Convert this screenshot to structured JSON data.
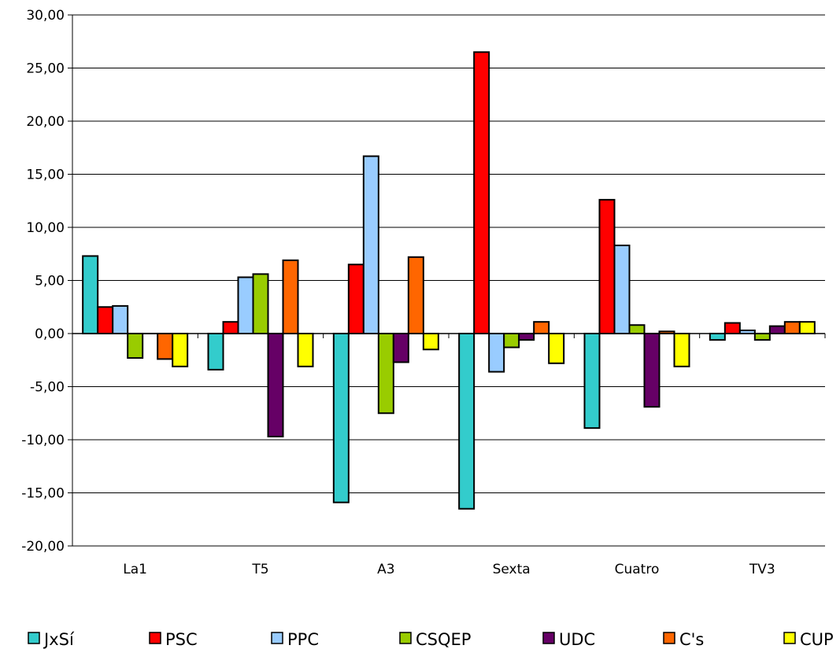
{
  "chart_data": {
    "type": "bar",
    "title": "",
    "xlabel": "",
    "ylabel": "",
    "categories": [
      "La1",
      "T5",
      "A3",
      "Sexta",
      "Cuatro",
      "TV3"
    ],
    "ylim": [
      -20,
      30
    ],
    "yticks": [
      30,
      25,
      20,
      15,
      10,
      5,
      0,
      -5,
      -10,
      -15,
      -20
    ],
    "ytick_labels": [
      "30,00",
      "25,00",
      "20,00",
      "15,00",
      "10,00",
      "5,00",
      "0,00",
      "-5,00",
      "-10,00",
      "-15,00",
      "-20,00"
    ],
    "grid": true,
    "legend_position": "bottom",
    "series": [
      {
        "name": "JxSí",
        "color": "#33CCCC",
        "values": [
          7.3,
          -3.4,
          -15.9,
          -16.5,
          -8.9,
          -0.6
        ]
      },
      {
        "name": "PSC",
        "color": "#FF0000",
        "values": [
          2.5,
          1.1,
          6.5,
          26.5,
          12.6,
          1.0
        ]
      },
      {
        "name": "PPC",
        "color": "#99CCFF",
        "values": [
          2.6,
          5.3,
          16.7,
          -3.6,
          8.3,
          0.3
        ]
      },
      {
        "name": "CSQEP",
        "color": "#99CC00",
        "values": [
          -2.3,
          5.6,
          -7.5,
          -1.3,
          0.8,
          -0.6
        ]
      },
      {
        "name": "UDC",
        "color": "#660066",
        "values": [
          0.0,
          -9.7,
          -2.7,
          -0.6,
          -6.9,
          0.7
        ]
      },
      {
        "name": "C's",
        "color": "#FF6600",
        "values": [
          -2.4,
          6.9,
          7.2,
          1.1,
          0.2,
          1.1
        ]
      },
      {
        "name": "CUP",
        "color": "#FFFF00",
        "values": [
          -3.1,
          -3.1,
          -1.5,
          -2.8,
          -3.1,
          1.1
        ]
      }
    ]
  }
}
